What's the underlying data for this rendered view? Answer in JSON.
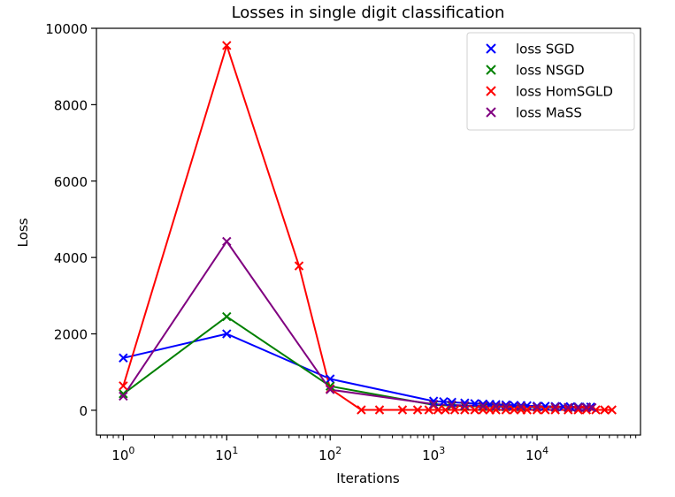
{
  "chart_data": {
    "type": "line",
    "title": "Losses in single digit classification",
    "xlabel": "Iterations",
    "ylabel": "Loss",
    "xscale": "log",
    "xlim": [
      0.55,
      100000
    ],
    "ylim": [
      -650,
      10000
    ],
    "grid": false,
    "legend_placement": "top-right",
    "xticks": [
      {
        "value": 1,
        "base": "10",
        "exp": "0"
      },
      {
        "value": 10,
        "base": "10",
        "exp": "1"
      },
      {
        "value": 100,
        "base": "10",
        "exp": "2"
      },
      {
        "value": 1000,
        "base": "10",
        "exp": "3"
      },
      {
        "value": 10000,
        "base": "10",
        "exp": "4"
      }
    ],
    "yticks": [
      0,
      2000,
      4000,
      6000,
      8000,
      10000
    ],
    "series": [
      {
        "name": "loss SGD",
        "color": "#0000ff",
        "points": [
          [
            1,
            1370
          ],
          [
            10,
            2000
          ],
          [
            100,
            820
          ],
          [
            1000,
            240
          ],
          [
            1250,
            225
          ],
          [
            1500,
            210
          ],
          [
            2000,
            190
          ],
          [
            2500,
            175
          ],
          [
            3000,
            165
          ],
          [
            3500,
            155
          ],
          [
            4000,
            150
          ],
          [
            5000,
            140
          ],
          [
            6000,
            130
          ],
          [
            7000,
            125
          ],
          [
            8000,
            120
          ],
          [
            10000,
            110
          ],
          [
            12000,
            105
          ],
          [
            15000,
            100
          ],
          [
            18000,
            95
          ],
          [
            21000,
            90
          ],
          [
            25000,
            90
          ],
          [
            30000,
            85
          ],
          [
            33000,
            85
          ]
        ]
      },
      {
        "name": "loss NSGD",
        "color": "#008000",
        "points": [
          [
            1,
            430
          ],
          [
            10,
            2450
          ],
          [
            100,
            630
          ],
          [
            1000,
            140
          ],
          [
            1500,
            120
          ],
          [
            2000,
            110
          ],
          [
            3000,
            100
          ],
          [
            4000,
            95
          ],
          [
            5000,
            90
          ],
          [
            7000,
            85
          ],
          [
            10000,
            80
          ],
          [
            15000,
            75
          ],
          [
            20000,
            70
          ],
          [
            25000,
            70
          ],
          [
            30000,
            70
          ]
        ]
      },
      {
        "name": "loss HomSGLD",
        "color": "#ff0000",
        "points": [
          [
            1,
            640
          ],
          [
            10,
            9550
          ],
          [
            50,
            3780
          ],
          [
            100,
            560
          ],
          [
            200,
            10
          ],
          [
            300,
            10
          ],
          [
            500,
            10
          ],
          [
            700,
            10
          ],
          [
            900,
            10
          ],
          [
            1100,
            10
          ],
          [
            1300,
            10
          ],
          [
            1600,
            10
          ],
          [
            2000,
            10
          ],
          [
            2500,
            10
          ],
          [
            3000,
            10
          ],
          [
            3500,
            10
          ],
          [
            4000,
            10
          ],
          [
            5000,
            10
          ],
          [
            6000,
            10
          ],
          [
            7000,
            10
          ],
          [
            8000,
            10
          ],
          [
            10000,
            10
          ],
          [
            12000,
            10
          ],
          [
            15000,
            10
          ],
          [
            20000,
            10
          ],
          [
            25000,
            10
          ],
          [
            30000,
            10
          ],
          [
            37000,
            10
          ],
          [
            45000,
            10
          ],
          [
            53000,
            10
          ]
        ]
      },
      {
        "name": "loss MaSS",
        "color": "#800080",
        "points": [
          [
            1,
            370
          ],
          [
            10,
            4420
          ],
          [
            100,
            540
          ],
          [
            1000,
            160
          ],
          [
            1500,
            140
          ],
          [
            2000,
            125
          ],
          [
            3000,
            115
          ],
          [
            4000,
            105
          ],
          [
            5000,
            100
          ],
          [
            7000,
            95
          ],
          [
            10000,
            85
          ],
          [
            15000,
            80
          ],
          [
            20000,
            75
          ],
          [
            25000,
            70
          ],
          [
            30000,
            70
          ],
          [
            34000,
            70
          ]
        ]
      }
    ]
  }
}
